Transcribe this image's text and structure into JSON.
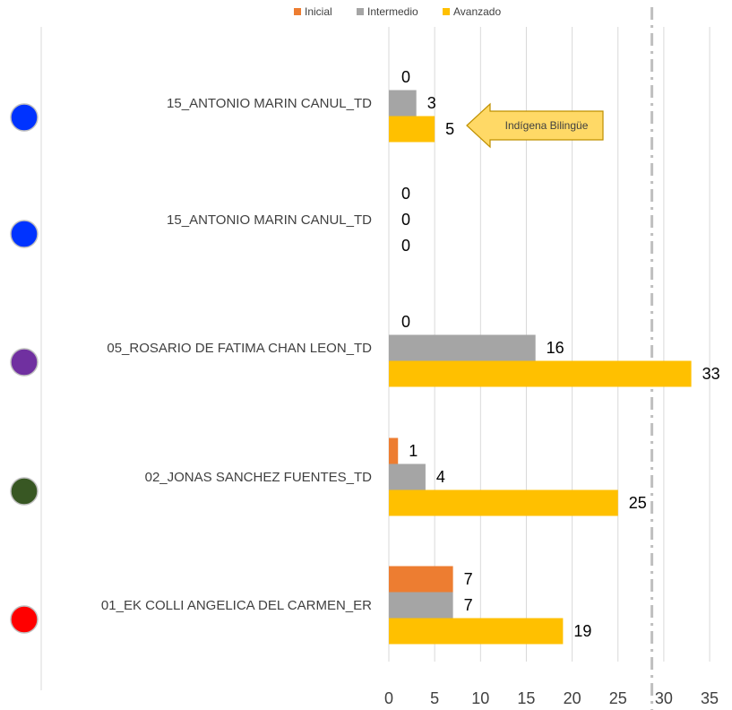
{
  "chart_data": {
    "type": "bar",
    "orientation": "horizontal",
    "categories": [
      "15_ANTONIO MARIN CANUL_TD",
      "15_ANTONIO MARIN CANUL_TD",
      "05_ROSARIO DE FATIMA CHAN LEON_TD",
      "02_JONAS SANCHEZ FUENTES_TD",
      "01_EK COLLI ANGELICA DEL CARMEN_ER"
    ],
    "series": [
      {
        "name": "Inicial",
        "color": "#ED7D31",
        "values": [
          0,
          0,
          0,
          1,
          7
        ]
      },
      {
        "name": "Intermedio",
        "color": "#A5A5A5",
        "values": [
          3,
          0,
          16,
          4,
          7
        ]
      },
      {
        "name": "Avanzado",
        "color": "#FFC000",
        "values": [
          5,
          0,
          33,
          25,
          19
        ]
      }
    ],
    "xlim": [
      0,
      35
    ],
    "xticks": [
      "0",
      "5",
      "10",
      "15",
      "20",
      "25",
      "30",
      "35"
    ],
    "grid": true,
    "legend": "top-center",
    "reference_line": {
      "value": 28.7,
      "style": "dash-dot",
      "color": "#BFBFBF"
    },
    "markers": [
      {
        "shape": "circle",
        "color": "#0033FF"
      },
      {
        "shape": "circle",
        "color": "#0033FF"
      },
      {
        "shape": "circle",
        "color": "#7030A0"
      },
      {
        "shape": "circle",
        "color": "#385723"
      },
      {
        "shape": "circle",
        "color": "#FF0000"
      }
    ],
    "annotations": [
      {
        "text": "Indígena Bilingüe",
        "points_to_category_index": 0,
        "fill": "#FFD966",
        "border": "#BF9000"
      }
    ]
  }
}
